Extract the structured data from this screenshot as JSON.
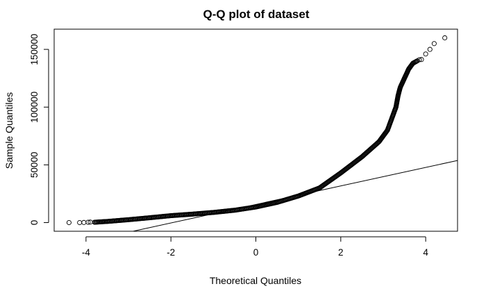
{
  "chart_data": {
    "type": "scatter",
    "title": "Q-Q plot of dataset",
    "xlabel": "Theoretical Quantiles",
    "ylabel": "Sample Quantiles",
    "xlim": [
      -4.75,
      4.75
    ],
    "ylim": [
      -7500,
      167500
    ],
    "x_ticks": [
      -4,
      -2,
      0,
      2,
      4
    ],
    "y_ticks": [
      0,
      50000,
      100000,
      150000
    ],
    "grid": false,
    "marker": "open-circle",
    "reference_line": {
      "x1": -4.75,
      "y1": -22400,
      "x2": 4.75,
      "y2": 53800
    },
    "curve_points": [
      [
        -3.8,
        300
      ],
      [
        -3.5,
        1000
      ],
      [
        -3.0,
        2500
      ],
      [
        -2.5,
        4200
      ],
      [
        -2.0,
        6000
      ],
      [
        -1.5,
        7300
      ],
      [
        -1.0,
        8800
      ],
      [
        -0.5,
        10700
      ],
      [
        0.0,
        13500
      ],
      [
        0.5,
        17500
      ],
      [
        1.0,
        23000
      ],
      [
        1.5,
        30000
      ],
      [
        2.0,
        43000
      ],
      [
        2.5,
        57000
      ],
      [
        2.9,
        70000
      ],
      [
        3.1,
        80000
      ],
      [
        3.2,
        90000
      ],
      [
        3.3,
        100000
      ],
      [
        3.35,
        110000
      ],
      [
        3.4,
        117000
      ],
      [
        3.5,
        125000
      ],
      [
        3.6,
        133000
      ],
      [
        3.7,
        138000
      ],
      [
        3.8,
        140000
      ]
    ],
    "tail_points": [
      [
        -4.4,
        0
      ],
      [
        -4.15,
        0
      ],
      [
        -4.05,
        100
      ],
      [
        -3.95,
        300
      ],
      [
        -3.9,
        400
      ],
      [
        3.85,
        141000
      ],
      [
        3.9,
        141200
      ],
      [
        4.0,
        146000
      ],
      [
        4.1,
        150000
      ],
      [
        4.2,
        155000
      ],
      [
        4.45,
        160000
      ]
    ]
  }
}
